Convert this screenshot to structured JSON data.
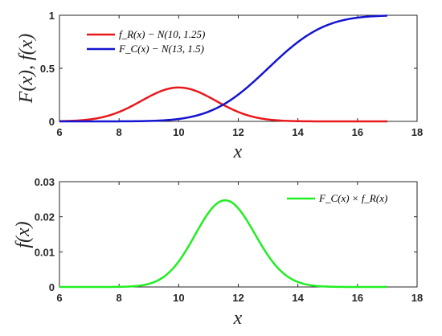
{
  "chart_data": [
    {
      "type": "line",
      "title": "",
      "xlabel": "x",
      "ylabel": "F(x), f(x)",
      "xlim": [
        6,
        18
      ],
      "ylim": [
        0,
        1
      ],
      "xticks": [
        "6",
        "8",
        "10",
        "12",
        "14",
        "16",
        "18"
      ],
      "yticks": [
        "0",
        "0.5",
        "1"
      ],
      "grid": false,
      "legend_position": "top-left",
      "series": [
        {
          "name": "f_R(x) − N(10, 1.25)",
          "color": "#e8191c",
          "function": "normal_pdf",
          "mean": 10,
          "sd": 1.25,
          "x": [
            6,
            7,
            8,
            8.5,
            9,
            9.5,
            10,
            10.5,
            11,
            11.5,
            12,
            13,
            14,
            15,
            16,
            17
          ],
          "y": [
            0.0019,
            0.018,
            0.0888,
            0.1553,
            0.2313,
            0.2938,
            0.3183,
            0.2938,
            0.2313,
            0.1553,
            0.0888,
            0.018,
            0.0019,
            0.0001,
            0.0,
            0.0
          ]
        },
        {
          "name": "F_C(x) − N(13, 1.5)",
          "color": "#1414d2",
          "function": "normal_cdf",
          "mean": 13,
          "sd": 1.5,
          "x": [
            6,
            8,
            9,
            10,
            11,
            12,
            13,
            14,
            15,
            16,
            17
          ],
          "y": [
            0.0,
            0.0004,
            0.0038,
            0.0228,
            0.0912,
            0.2525,
            0.5,
            0.7475,
            0.9088,
            0.9772,
            0.9962
          ]
        }
      ]
    },
    {
      "type": "line",
      "title": "",
      "xlabel": "x",
      "ylabel": "f(x)",
      "xlim": [
        6,
        18
      ],
      "ylim": [
        0,
        0.03
      ],
      "xticks": [
        "6",
        "8",
        "10",
        "12",
        "14",
        "16",
        "18"
      ],
      "yticks": [
        "0",
        "0.01",
        "0.02",
        "0.03"
      ],
      "grid": false,
      "legend_position": "top-right",
      "series": [
        {
          "name": "F_C(x) × f_R(x)",
          "color": "#22ee22",
          "function": "product",
          "x": [
            6,
            8,
            9,
            10,
            10.5,
            11,
            11.5,
            12,
            12.5,
            13,
            14,
            15,
            16,
            17
          ],
          "y": [
            0.0,
            0.0,
            0.0009,
            0.0073,
            0.0134,
            0.0211,
            0.0247,
            0.0224,
            0.0165,
            0.009,
            0.0015,
            0.0001,
            0.0,
            0.0
          ]
        }
      ]
    }
  ]
}
